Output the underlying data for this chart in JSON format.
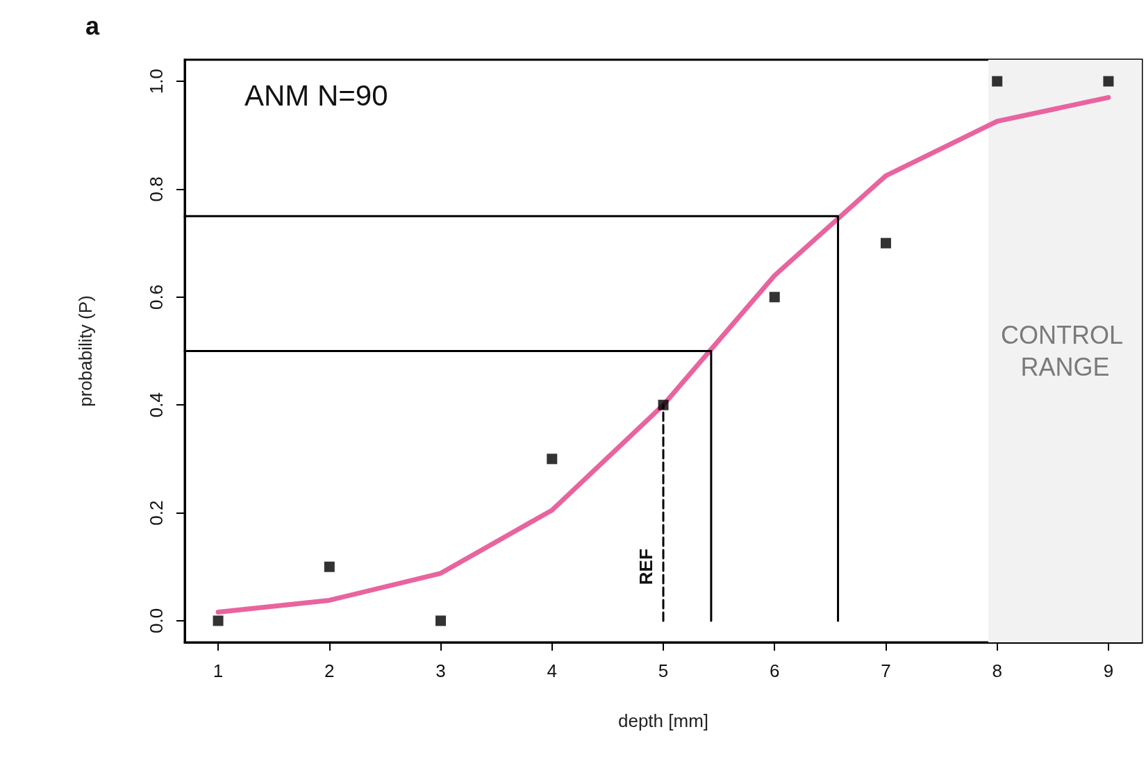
{
  "chart_data": {
    "type": "scatter",
    "title": "a",
    "xlabel": "depth [mm]",
    "ylabel": "probability (P)",
    "annotations": [
      "ANM N=90",
      {
        "text": "REF",
        "x": 5,
        "y": 0.1
      }
    ],
    "xlim": [
      0.7,
      9.3
    ],
    "xticks": [
      1,
      2,
      3,
      4,
      5,
      6,
      7,
      8,
      9
    ],
    "ylim": [
      -0.04,
      1.04
    ],
    "yticks": [
      {
        "value": 0,
        "label": "0.0"
      },
      {
        "value": 0.2,
        "label": "0.2"
      },
      {
        "value": 0.4,
        "label": "0.4"
      },
      {
        "value": 0.6,
        "label": "0.6"
      },
      {
        "value": 0.8,
        "label": "0.8"
      },
      {
        "value": 1,
        "label": "1.0"
      }
    ],
    "grid": false,
    "bands": [
      {
        "axis": "x",
        "from": 7.92,
        "to": 9.3,
        "label": "CONTROL RANGE",
        "color": "#f2f2f2"
      }
    ],
    "series": [
      {
        "type": "line",
        "color": "#e8649f",
        "marker": "none",
        "line_style": "solid",
        "x": [
          1,
          2,
          3,
          4,
          5,
          6,
          7,
          8,
          9
        ],
        "values": [
          0.016,
          0.038,
          0.088,
          0.205,
          0.4,
          0.64,
          0.825,
          0.926,
          0.97
        ]
      },
      {
        "type": "line",
        "color": "#000000",
        "marker": "none",
        "line_style": "solid",
        "x": [
          0.7,
          5.43,
          5.43
        ],
        "values": [
          0.5,
          0.5,
          0
        ]
      },
      {
        "type": "line",
        "color": "#000000",
        "marker": "none",
        "line_style": "solid",
        "x": [
          0.7,
          6.57,
          6.57
        ],
        "values": [
          0.75,
          0.75,
          0
        ]
      },
      {
        "type": "line",
        "color": "#000000",
        "marker": "none",
        "line_style": "dashed",
        "x": [
          5,
          5
        ],
        "values": [
          0,
          0.4
        ]
      },
      {
        "type": "scatter",
        "color": "#000000",
        "marker": "square",
        "x": [
          1,
          2,
          3,
          4,
          5,
          6,
          7,
          8,
          9
        ],
        "values": [
          0,
          0.1,
          0,
          0.3,
          0.4,
          0.6,
          0.7,
          1,
          1
        ]
      }
    ]
  }
}
